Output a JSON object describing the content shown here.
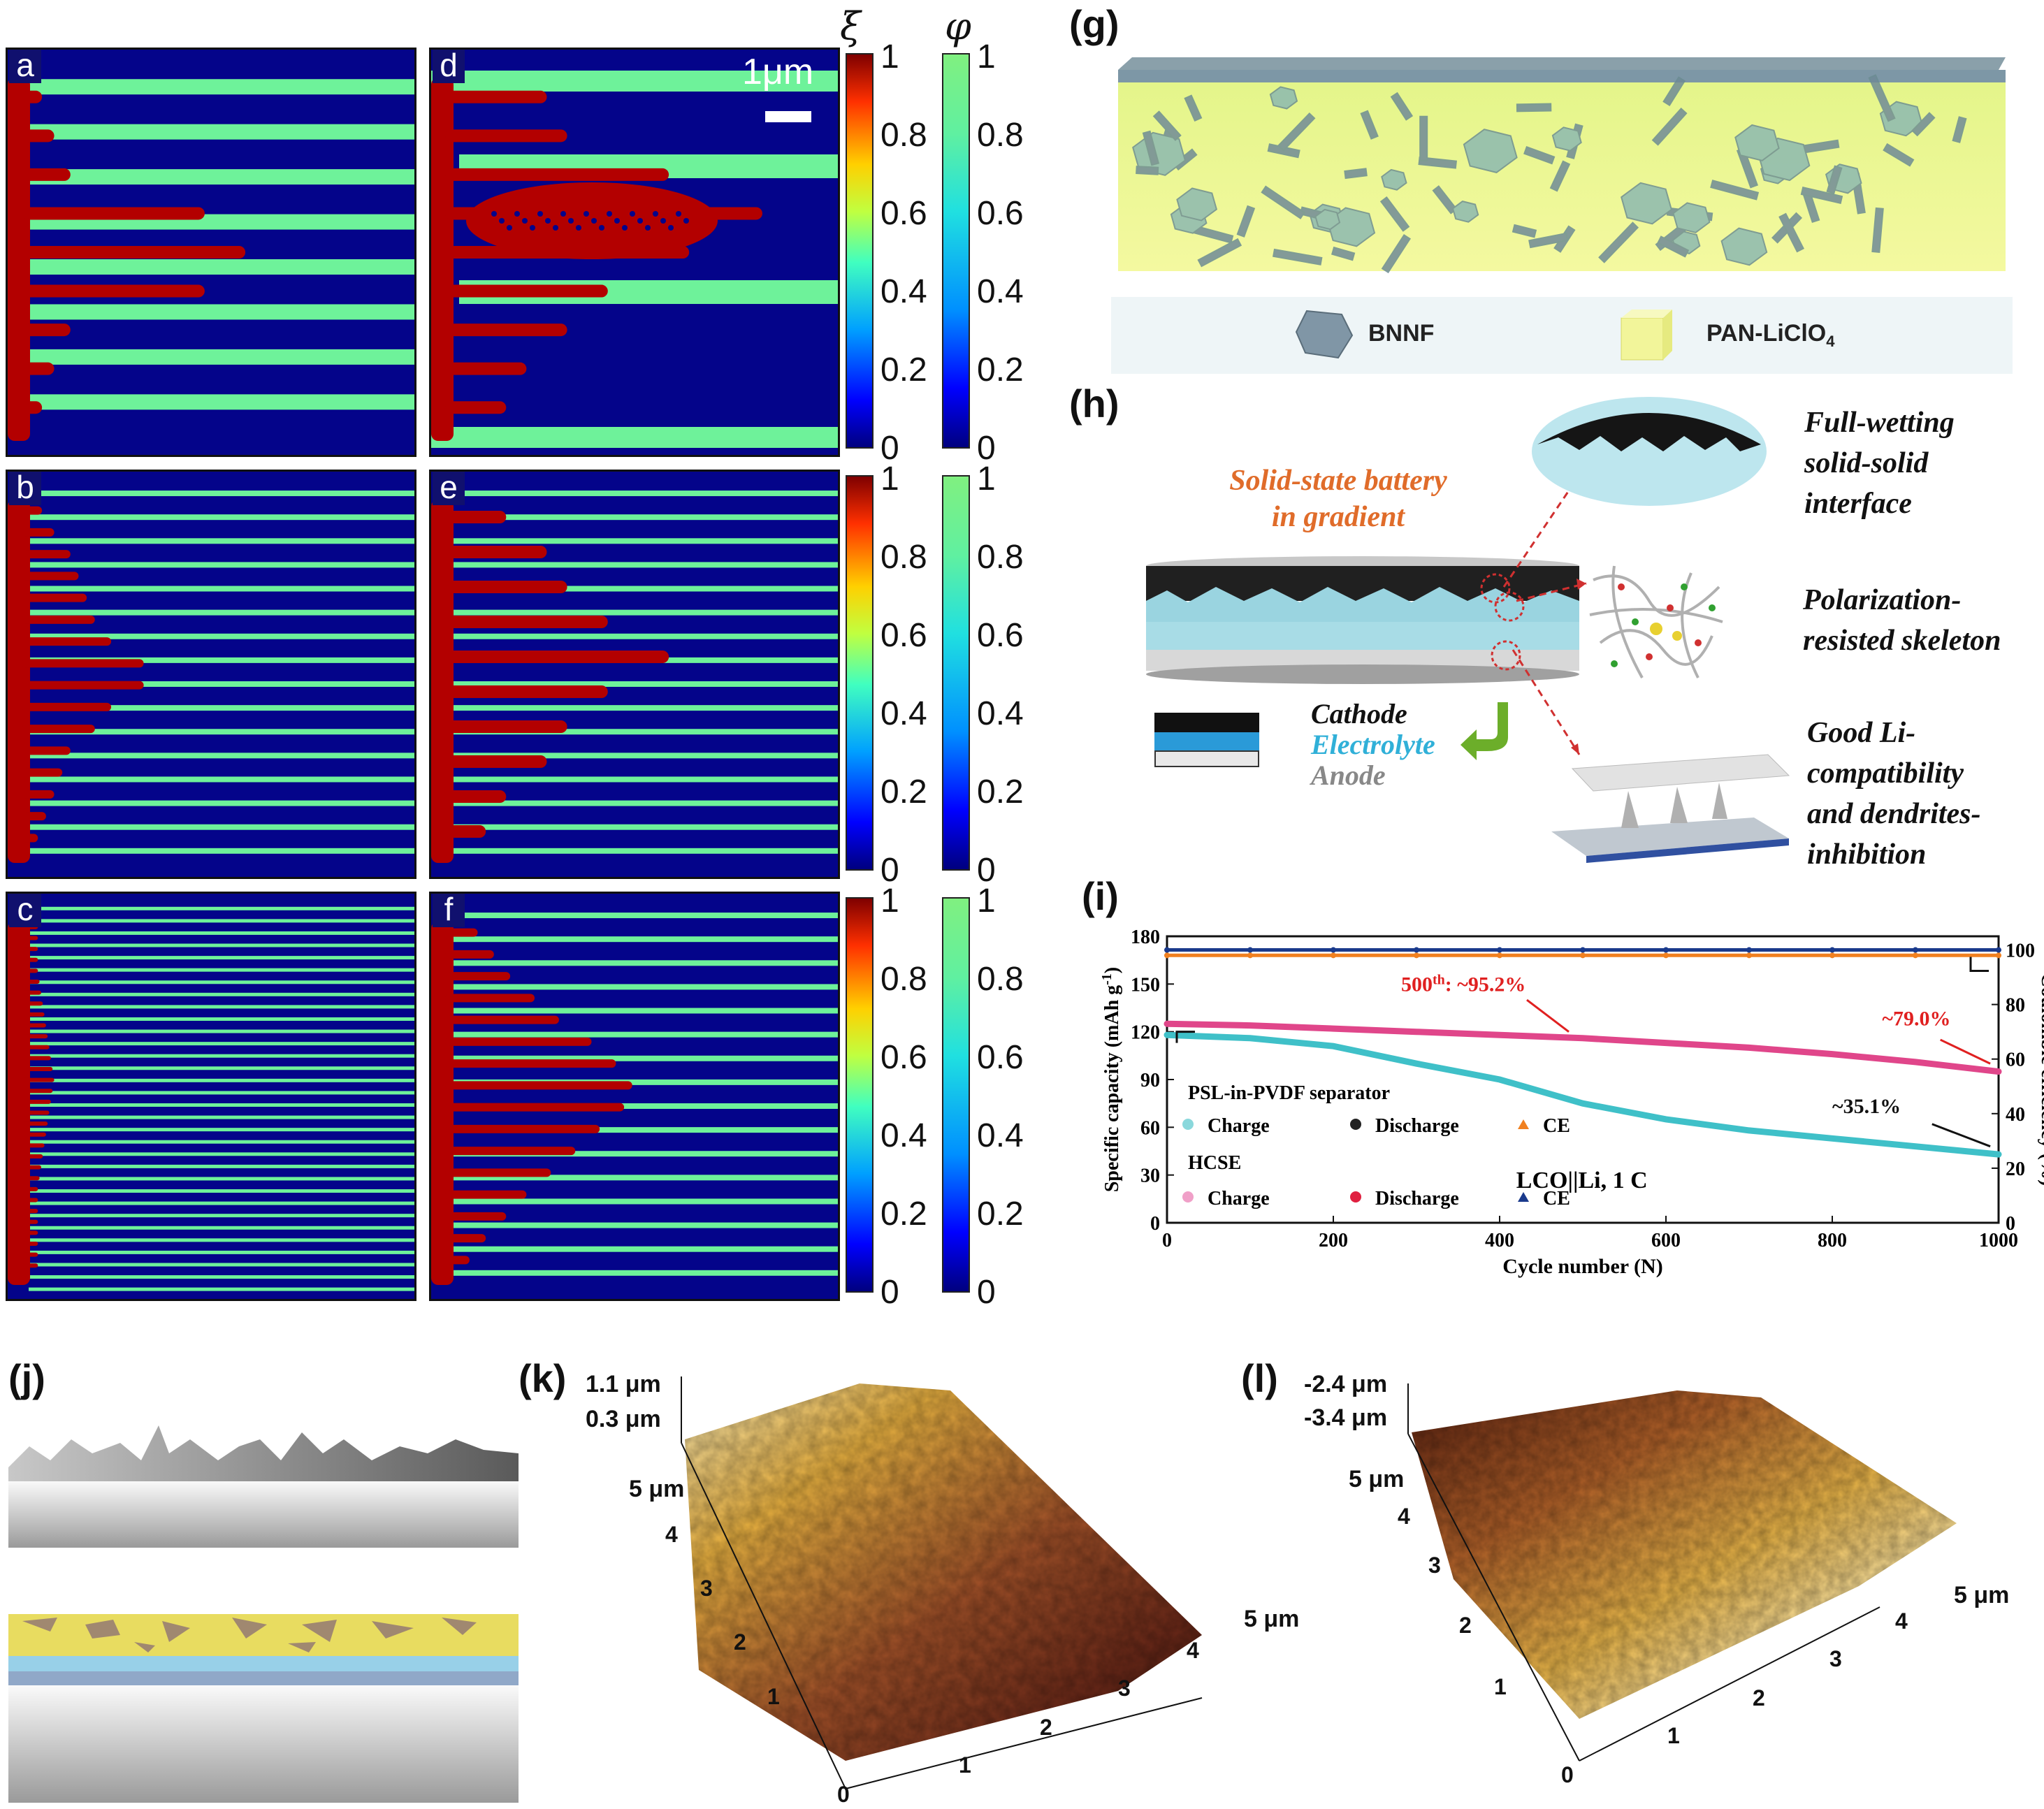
{
  "sim": {
    "panels": [
      {
        "letter": "a"
      },
      {
        "letter": "d"
      },
      {
        "letter": "b"
      },
      {
        "letter": "e"
      },
      {
        "letter": "c"
      },
      {
        "letter": "f"
      }
    ],
    "scale_bar": "1μm",
    "colorbar_xi_title": "ξ",
    "colorbar_phi_title": "φ",
    "ticks": [
      "1",
      "0.8",
      "0.6",
      "0.4",
      "0.2",
      "0"
    ],
    "colors": {
      "electrolyte": "#04048a",
      "lithium": "#b30000",
      "separator": "#6ef29a"
    }
  },
  "g": {
    "label": "(g)",
    "legend_bnnf": "BNNF",
    "legend_pan": "PAN-LiClO",
    "legend_pan_sub": "4"
  },
  "h": {
    "label": "(h)",
    "battery_title_1": "Solid-state battery",
    "battery_title_2": "in gradient",
    "layer_cathode": "Cathode",
    "layer_electrolyte": "Electrolyte",
    "layer_anode": "Anode",
    "feature_1": [
      "Full-wetting",
      "solid-solid",
      "interface"
    ],
    "feature_2": [
      "Polarization-",
      "resisted skeleton"
    ],
    "feature_3": [
      "Good Li-",
      "compatibility",
      "and dendrites-",
      "inhibition"
    ]
  },
  "i": {
    "label": "(i)",
    "chart_data": {
      "type": "scatter",
      "xlabel": "Cycle number (N)",
      "ylabel": "Specific capacity (mAh g",
      "ylabel_sup": "-1",
      "ylabel_close": ")",
      "y2label": "Coulombic efficiency (%)",
      "xlim": [
        0,
        1000
      ],
      "ylim": [
        0,
        180
      ],
      "y2lim": [
        0,
        105
      ],
      "x_ticks": [
        "0",
        "200",
        "400",
        "600",
        "800",
        "1000"
      ],
      "y_ticks": [
        "0",
        "30",
        "60",
        "90",
        "120",
        "150",
        "180"
      ],
      "y2_ticks": [
        "0",
        "20",
        "40",
        "60",
        "80",
        "100"
      ],
      "legend_group_1": "PSL-in-PVDF separator",
      "legend_group_2": "HCSE",
      "legend_items": [
        "Charge",
        "Discharge",
        "CE"
      ],
      "annotation_1": "500",
      "annotation_1_sup": "th",
      "annotation_1_rest": ": ~95.2%",
      "annotation_2": "~79.0%",
      "annotation_3": "~35.1%",
      "condition": "LCO||Li, 1 C",
      "series": [
        {
          "group": "HCSE",
          "metric": "capacity",
          "color": "#e0468a",
          "x": [
            0,
            100,
            200,
            300,
            400,
            500,
            600,
            700,
            800,
            900,
            1000
          ],
          "y": [
            125,
            124,
            122,
            120,
            118,
            116,
            113,
            110,
            106,
            101,
            95
          ]
        },
        {
          "group": "PSL-in-PVDF separator",
          "metric": "capacity",
          "color": "#3fc0c8",
          "x": [
            0,
            100,
            200,
            300,
            400,
            500,
            600,
            700,
            800,
            900,
            1000
          ],
          "y": [
            118,
            116,
            111,
            100,
            90,
            75,
            65,
            58,
            53,
            48,
            43
          ]
        },
        {
          "group": "HCSE",
          "metric": "CE",
          "color": "#1a3a8c",
          "x": [
            0,
            100,
            200,
            300,
            400,
            500,
            600,
            700,
            800,
            900,
            1000
          ],
          "y": [
            100,
            100,
            100,
            100,
            100,
            100,
            100,
            100,
            100,
            100,
            100
          ]
        },
        {
          "group": "PSL-in-PVDF separator",
          "metric": "CE",
          "color": "#f08020",
          "x": [
            0,
            100,
            200,
            300,
            400,
            500,
            600,
            700,
            800,
            900,
            1000
          ],
          "y": [
            98,
            98,
            98,
            98,
            98,
            98,
            98,
            98,
            98,
            98,
            98
          ]
        }
      ]
    }
  },
  "j": {
    "label": "(j)"
  },
  "k": {
    "label": "(k)",
    "z_top": "1.1 μm",
    "z_mid": "0.3 μm",
    "y_max": "5 μm",
    "x_max": "5 μm",
    "axis_ticks": [
      "0",
      "1",
      "2",
      "3",
      "4"
    ]
  },
  "l": {
    "label": "(l)",
    "z_top": "-2.4 μm",
    "z_mid": "-3.4 μm",
    "y_max": "5 μm",
    "x_max": "5 μm",
    "axis_ticks": [
      "0",
      "1",
      "2",
      "3",
      "4"
    ]
  }
}
